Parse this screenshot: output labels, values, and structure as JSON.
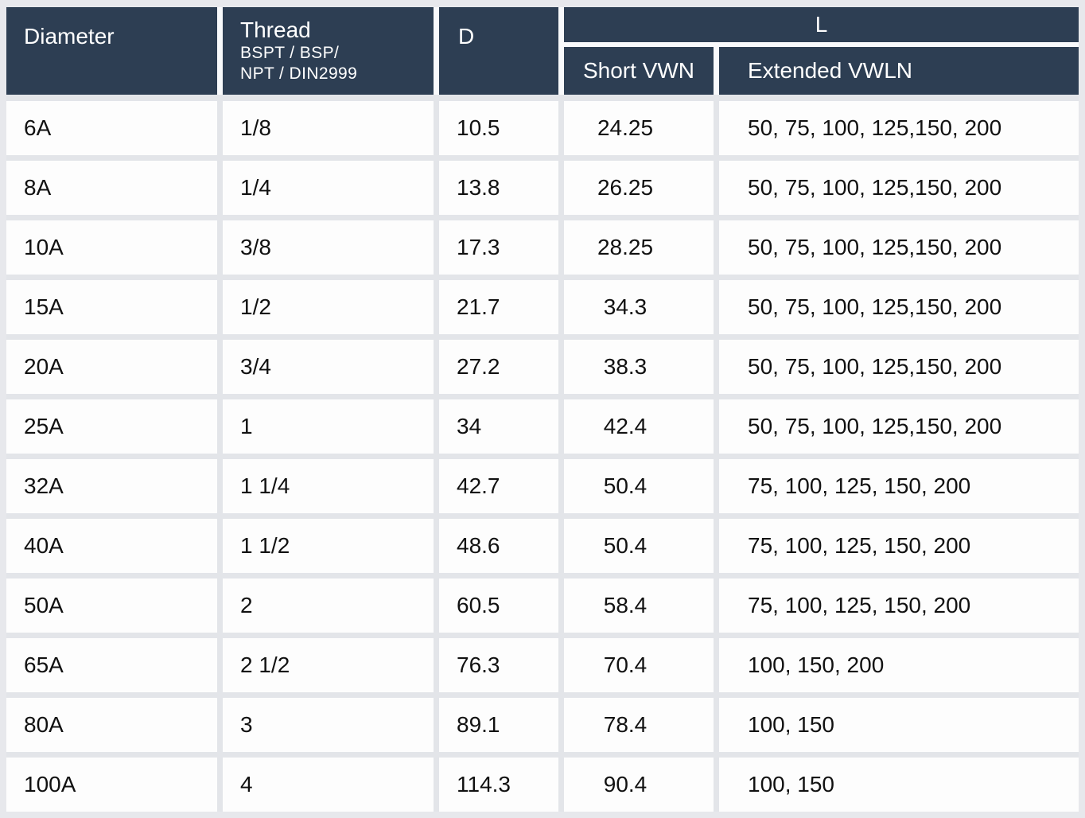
{
  "colors": {
    "page_bg": "#e7e8ec",
    "header_bg": "#2d3e53",
    "header_text": "#ffffff",
    "cell_bg": "#fdfdfd",
    "cell_text": "#111111",
    "row_gap": "#e3e5e9",
    "header_gap": "#f8f9fb"
  },
  "table": {
    "headers": {
      "diameter": "Diameter",
      "thread_title": "Thread",
      "thread_standards_line1": "BSPT / BSP/",
      "thread_standards_line2": "NPT / DIN2999",
      "d": "D",
      "l_group": "L",
      "short_vwn": "Short VWN",
      "extended_vwln": "Extended VWLN"
    },
    "rows": [
      {
        "diameter": "6A",
        "thread": "1/8",
        "d": "10.5",
        "short_vwn": "24.25",
        "extended_vwln": "50, 75, 100, 125,150, 200"
      },
      {
        "diameter": "8A",
        "thread": "1/4",
        "d": "13.8",
        "short_vwn": "26.25",
        "extended_vwln": "50, 75, 100, 125,150, 200"
      },
      {
        "diameter": "10A",
        "thread": "3/8",
        "d": "17.3",
        "short_vwn": "28.25",
        "extended_vwln": "50, 75, 100, 125,150, 200"
      },
      {
        "diameter": "15A",
        "thread": "1/2",
        "d": "21.7",
        "short_vwn": "34.3",
        "extended_vwln": "50, 75, 100, 125,150, 200"
      },
      {
        "diameter": "20A",
        "thread": "3/4",
        "d": "27.2",
        "short_vwn": "38.3",
        "extended_vwln": "50, 75, 100, 125,150, 200"
      },
      {
        "diameter": "25A",
        "thread": "1",
        "d": "34",
        "short_vwn": "42.4",
        "extended_vwln": "50, 75, 100, 125,150, 200"
      },
      {
        "diameter": "32A",
        "thread": "1 1/4",
        "d": "42.7",
        "short_vwn": "50.4",
        "extended_vwln": "75, 100, 125, 150, 200"
      },
      {
        "diameter": "40A",
        "thread": "1 1/2",
        "d": "48.6",
        "short_vwn": "50.4",
        "extended_vwln": "75, 100, 125, 150, 200"
      },
      {
        "diameter": "50A",
        "thread": "2",
        "d": "60.5",
        "short_vwn": "58.4",
        "extended_vwln": "75, 100, 125, 150, 200"
      },
      {
        "diameter": "65A",
        "thread": "2 1/2",
        "d": "76.3",
        "short_vwn": "70.4",
        "extended_vwln": "100, 150, 200"
      },
      {
        "diameter": "80A",
        "thread": "3",
        "d": "89.1",
        "short_vwn": "78.4",
        "extended_vwln": "100, 150"
      },
      {
        "diameter": "100A",
        "thread": "4",
        "d": "114.3",
        "short_vwn": "90.4",
        "extended_vwln": "100, 150"
      }
    ]
  }
}
